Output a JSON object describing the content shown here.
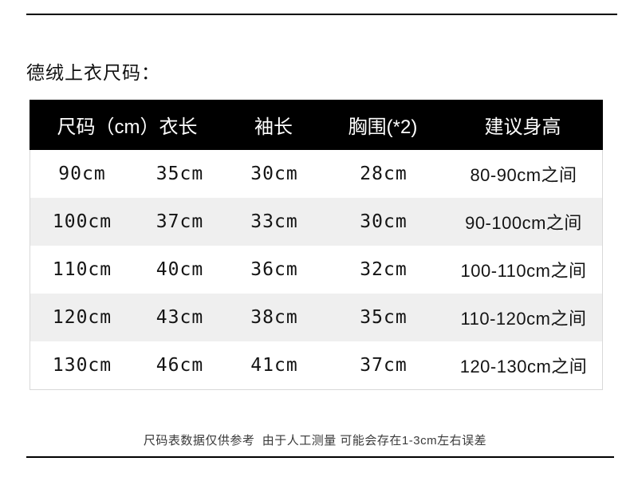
{
  "page": {
    "title": "德绒上衣尺码：",
    "footnote": "尺码表数据仅供参考  由于人工测量 可能会存在1-3cm左右误差"
  },
  "size_table": {
    "headers": [
      "尺码（cm）",
      "衣长",
      "袖长",
      "胸围(*2)",
      "建议身高"
    ],
    "rows": [
      [
        "90cm",
        "35cm",
        "30cm",
        "28cm",
        "80-90cm之间"
      ],
      [
        "100cm",
        "37cm",
        "33cm",
        "30cm",
        "90-100cm之间"
      ],
      [
        "110cm",
        "40cm",
        "36cm",
        "32cm",
        "100-110cm之间"
      ],
      [
        "120cm",
        "43cm",
        "38cm",
        "35cm",
        "110-120cm之间"
      ],
      [
        "130cm",
        "46cm",
        "41cm",
        "37cm",
        "120-130cm之间"
      ]
    ],
    "colors": {
      "header_bg": "#000000",
      "header_text": "#ffffff",
      "row_bg": "#ffffff",
      "row_alt_bg": "#efefef",
      "rule_color": "#000000",
      "text": "#141414"
    }
  }
}
